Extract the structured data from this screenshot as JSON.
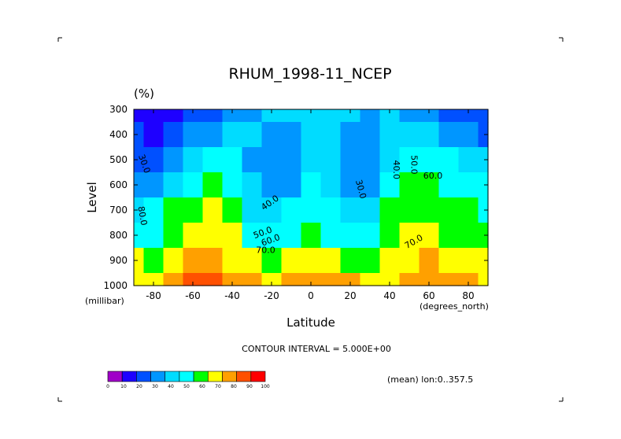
{
  "chart_data": {
    "type": "heatmap",
    "title": "RHUM_1998-11_NCEP",
    "units": "(%)",
    "xlabel": "Latitude",
    "ylabel": "Level",
    "x_unit_label": "(degrees_north)",
    "y_unit_label": "(millibar)",
    "xlim": [
      -90,
      90
    ],
    "ylim": [
      1000,
      300
    ],
    "x_ticks": [
      -80,
      -60,
      -40,
      -20,
      0,
      20,
      40,
      60,
      80
    ],
    "x_tick_labels": [
      "-80",
      "-60",
      "-40",
      "-20",
      "0",
      "20",
      "40",
      "60",
      "80"
    ],
    "y_ticks": [
      300,
      400,
      500,
      600,
      700,
      800,
      900,
      1000
    ],
    "y_tick_labels": [
      "300",
      "400",
      "500",
      "600",
      "700",
      "800",
      "900",
      "1000"
    ],
    "contour_interval_text": "CONTOUR INTERVAL = 5.000E+00",
    "subtitle_note": "(mean) lon:0..357.5",
    "levels": [
      0,
      10,
      20,
      30,
      40,
      50,
      60,
      70,
      80,
      90,
      100
    ],
    "level_labels": [
      "0",
      "10",
      "20",
      "30",
      "40",
      "50",
      "60",
      "70",
      "80",
      "90",
      "100"
    ],
    "colors": [
      "#a000c8",
      "#1e00ff",
      "#0050ff",
      "#0096ff",
      "#00dcff",
      "#00ffff",
      "#00ff00",
      "#ffff00",
      "#ffa000",
      "#ff5000",
      "#ff0000"
    ],
    "lat": [
      -90,
      -80,
      -70,
      -60,
      -50,
      -40,
      -30,
      -20,
      -10,
      0,
      10,
      20,
      30,
      40,
      50,
      60,
      70,
      80,
      90
    ],
    "pressure": [
      300,
      400,
      500,
      600,
      700,
      800,
      900,
      1000
    ],
    "values": [
      [
        18,
        12,
        18,
        22,
        25,
        30,
        38,
        40,
        42,
        40,
        42,
        40,
        38,
        40,
        35,
        30,
        25,
        22,
        20
      ],
      [
        22,
        18,
        25,
        32,
        38,
        42,
        40,
        32,
        35,
        42,
        40,
        32,
        35,
        42,
        45,
        40,
        35,
        30,
        28
      ],
      [
        28,
        25,
        35,
        45,
        52,
        50,
        38,
        30,
        35,
        45,
        42,
        30,
        32,
        45,
        55,
        55,
        50,
        45,
        40
      ],
      [
        35,
        32,
        45,
        58,
        62,
        55,
        42,
        32,
        38,
        50,
        45,
        32,
        35,
        50,
        60,
        62,
        58,
        55,
        50
      ],
      [
        48,
        52,
        60,
        68,
        70,
        62,
        48,
        42,
        50,
        58,
        52,
        42,
        48,
        60,
        68,
        68,
        62,
        60,
        55
      ],
      [
        58,
        55,
        65,
        75,
        78,
        70,
        58,
        52,
        58,
        62,
        58,
        52,
        55,
        65,
        72,
        72,
        68,
        65,
        60
      ],
      [
        72,
        68,
        78,
        85,
        85,
        78,
        70,
        68,
        72,
        78,
        72,
        68,
        68,
        70,
        78,
        80,
        78,
        72,
        70
      ],
      [
        70,
        72,
        82,
        92,
        90,
        85,
        80,
        78,
        82,
        85,
        82,
        80,
        78,
        75,
        82,
        85,
        82,
        80,
        78
      ]
    ],
    "contour_labels": [
      "30.0",
      "80.0",
      "40.0",
      "50.0",
      "60.0",
      "70.0",
      "30.0",
      "40.0",
      "50.0",
      "60.0",
      "70.0"
    ]
  }
}
